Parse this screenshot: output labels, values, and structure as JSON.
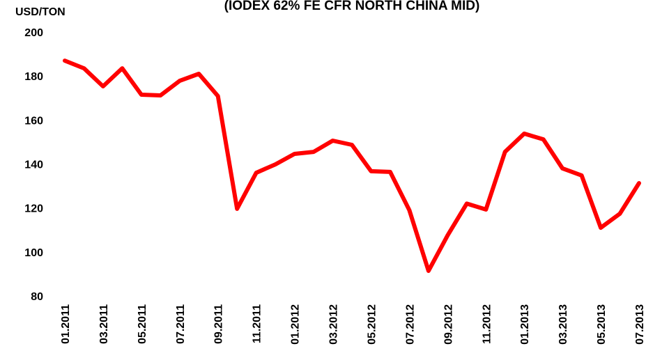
{
  "chart_data": {
    "type": "line",
    "title": "(IODEX 62% FE CFR NORTH CHINA MID)",
    "y_label": "USD/TON",
    "categories": [
      "01.2011",
      null,
      "03.2011",
      null,
      "05.2011",
      null,
      "07.2011",
      null,
      "09.2011",
      null,
      "11.2011",
      null,
      "01.2012",
      null,
      "03.2012",
      null,
      "05.2012",
      null,
      "07.2012",
      null,
      "09.2012",
      null,
      "11.2012",
      null,
      "01.2013",
      null,
      "03.2013",
      null,
      "05.2013",
      null,
      "07.2013"
    ],
    "series": [
      {
        "name": "IODEX 62% Fe CFR North China",
        "color": "#ff0000",
        "values": [
          187,
          183.5,
          175.3,
          183.5,
          171.5,
          171.2,
          177.8,
          181,
          170.9,
          119.6,
          136,
          139.8,
          144.6,
          145.5,
          150.6,
          148.7,
          136.7,
          136.4,
          119,
          91.4,
          107.5,
          122,
          119.3,
          145.5,
          153.8,
          151.2,
          138,
          134.8,
          111,
          117.4,
          131.3
        ]
      }
    ],
    "ylim": [
      80,
      200
    ],
    "yticks": [
      80,
      100,
      120,
      140,
      160,
      180,
      200
    ],
    "grid": false
  }
}
